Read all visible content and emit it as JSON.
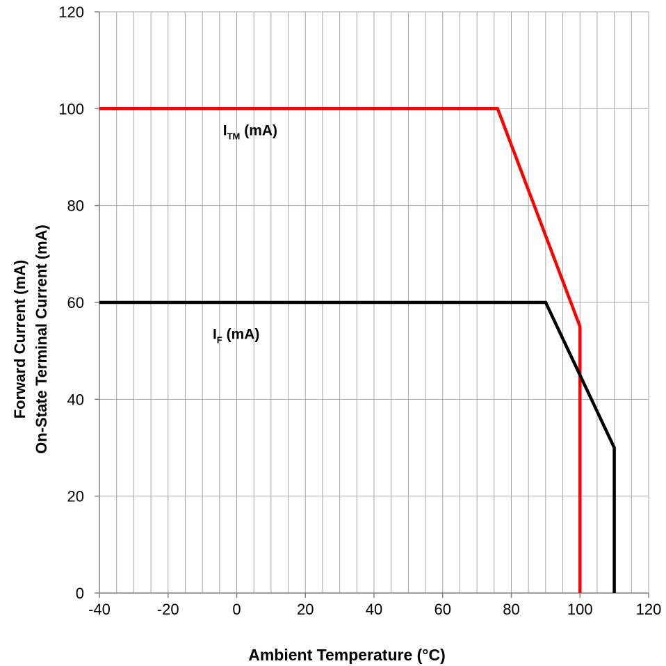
{
  "chart_data": {
    "type": "line",
    "title": "",
    "xlabel": "Ambient Temperature (°C)",
    "ylabel_line1": "Forward Current (mA)",
    "ylabel_line2": "On-State Terminal Current (mA)",
    "xlim": [
      -40,
      120
    ],
    "ylim": [
      0,
      120
    ],
    "x_ticks": [
      -40,
      -20,
      0,
      20,
      40,
      60,
      80,
      100,
      120
    ],
    "y_ticks": [
      0,
      20,
      40,
      60,
      80,
      100,
      120
    ],
    "x_minor_step": 5,
    "y_major_step": 20,
    "grid": true,
    "series": [
      {
        "name": "ITM (mA)",
        "label_main": "I",
        "label_sub": "TM",
        "label_rest": " (mA)",
        "color": "#ff0000",
        "points": [
          [
            -40,
            100
          ],
          [
            76,
            100
          ],
          [
            100,
            55
          ],
          [
            100,
            0
          ]
        ]
      },
      {
        "name": "IF (mA)",
        "label_main": "I",
        "label_sub": "F",
        "label_rest": " (mA)",
        "color": "#000000",
        "points": [
          [
            -40,
            60
          ],
          [
            90,
            60
          ],
          [
            110,
            30
          ],
          [
            110,
            0
          ]
        ]
      }
    ],
    "annotations": [
      {
        "series_index": 0,
        "x": -4,
        "y": 94.5
      },
      {
        "series_index": 1,
        "x": -7,
        "y": 52.5
      }
    ]
  }
}
